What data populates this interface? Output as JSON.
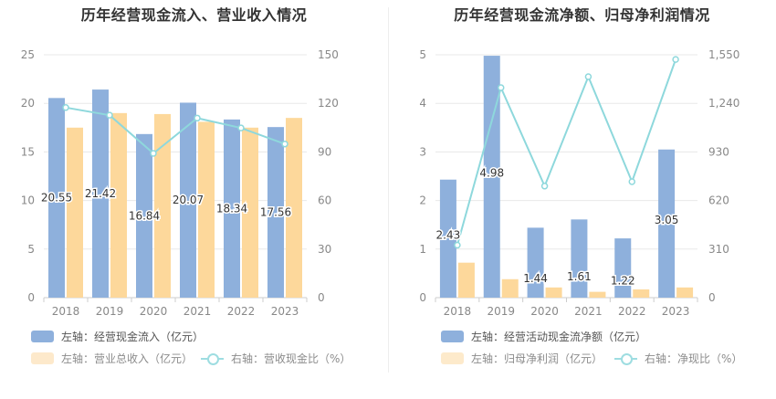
{
  "chart_data": [
    {
      "type": "bar",
      "title": "历年经营现金流入、营业收入情况",
      "categories": [
        "2018",
        "2019",
        "2020",
        "2021",
        "2022",
        "2023"
      ],
      "left_axis": {
        "ticks": [
          "0",
          "5",
          "10",
          "15",
          "20",
          "25"
        ],
        "ylim": [
          0,
          25
        ]
      },
      "right_axis": {
        "ticks": [
          "0",
          "30",
          "60",
          "90",
          "120",
          "150"
        ],
        "ylim": [
          0,
          150
        ]
      },
      "series": [
        {
          "name": "左轴：经营现金流入（亿元）",
          "kind": "bar",
          "axis": "left",
          "color": "#8eb0dc",
          "values": [
            20.55,
            21.42,
            16.84,
            20.07,
            18.34,
            17.56
          ],
          "labels": [
            "20.55",
            "21.42",
            "16.84",
            "20.07",
            "18.34",
            "17.56"
          ]
        },
        {
          "name": "左轴：营业总收入（亿元）",
          "kind": "bar",
          "axis": "left",
          "color": "#fdd89b",
          "values": [
            17.5,
            19.0,
            18.9,
            18.1,
            17.5,
            18.5
          ]
        },
        {
          "name": "右轴：营收现金比（%）",
          "kind": "line",
          "axis": "right",
          "color": "#8ed8dc",
          "values": [
            117.4,
            112.7,
            89.1,
            110.9,
            104.8,
            94.9
          ]
        }
      ],
      "grid": true,
      "legend_position": "bottom"
    },
    {
      "type": "bar",
      "title": "历年经营现金流净额、归母净利润情况",
      "categories": [
        "2018",
        "2019",
        "2020",
        "2021",
        "2022",
        "2023"
      ],
      "left_axis": {
        "ticks": [
          "0",
          "1",
          "2",
          "3",
          "4",
          "5"
        ],
        "ylim": [
          0,
          5
        ]
      },
      "right_axis": {
        "ticks": [
          "0",
          "310",
          "620",
          "930",
          "1,240",
          "1,550"
        ],
        "ylim": [
          0,
          1550
        ]
      },
      "series": [
        {
          "name": "左轴：经营活动现金流净额（亿元）",
          "kind": "bar",
          "axis": "left",
          "color": "#8eb0dc",
          "values": [
            2.43,
            4.98,
            1.44,
            1.61,
            1.22,
            3.05
          ],
          "labels": [
            "2.43",
            "4.98",
            "1.44",
            "1.61",
            "1.22",
            "3.05"
          ]
        },
        {
          "name": "左轴：归母净利润（亿元）",
          "kind": "bar",
          "axis": "left",
          "color": "#fdd89b",
          "values": [
            0.72,
            0.38,
            0.21,
            0.12,
            0.17,
            0.21
          ]
        },
        {
          "name": "右轴：净现比（%）",
          "kind": "line",
          "axis": "right",
          "color": "#8ed8dc",
          "values": [
            335,
            1340,
            712,
            1410,
            740,
            1520
          ]
        }
      ],
      "grid": true,
      "legend_position": "bottom"
    }
  ]
}
